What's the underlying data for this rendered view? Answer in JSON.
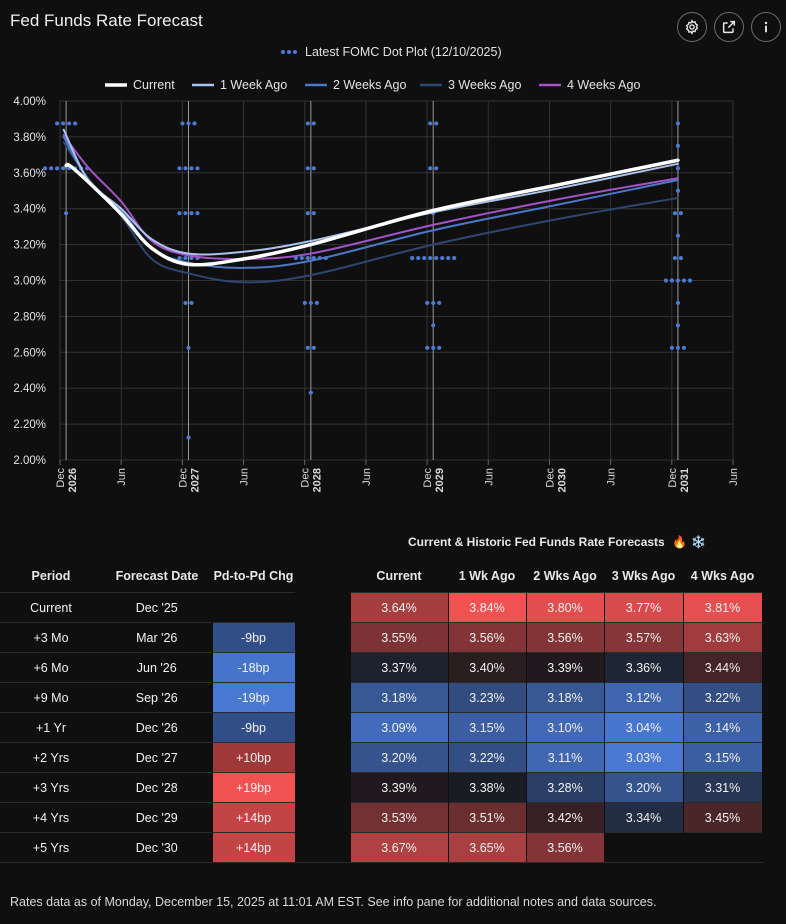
{
  "app": {
    "title": "Fed Funds Rate Forecast",
    "icons": [
      "gear-icon",
      "external-link-icon",
      "info-icon"
    ]
  },
  "chart_data": {
    "type": "line",
    "title": "Latest FOMC Dot Plot (12/10/2025)",
    "ylim": [
      0.02,
      0.04
    ],
    "y_ticks": [
      {
        "v": 0.02,
        "label": "2.00%"
      },
      {
        "v": 0.022,
        "label": "2.20%"
      },
      {
        "v": 0.024,
        "label": "2.40%"
      },
      {
        "v": 0.026,
        "label": "2.60%"
      },
      {
        "v": 0.028,
        "label": "2.80%"
      },
      {
        "v": 0.03,
        "label": "3.00%"
      },
      {
        "v": 0.032,
        "label": "3.20%"
      },
      {
        "v": 0.034,
        "label": "3.40%"
      },
      {
        "v": 0.036,
        "label": "3.60%"
      },
      {
        "v": 0.038,
        "label": "3.80%"
      },
      {
        "v": 0.04,
        "label": "4.00%"
      }
    ],
    "xlim": [
      2025.92,
      2031.42
    ],
    "x_ticks": [
      {
        "v": 2025.92,
        "label": [
          "Dec",
          "2026"
        ],
        "year": true
      },
      {
        "v": 2026.42,
        "label": [
          "Jun"
        ]
      },
      {
        "v": 2026.92,
        "label": [
          "Dec",
          "2027"
        ],
        "year": true
      },
      {
        "v": 2027.42,
        "label": [
          "Jun"
        ]
      },
      {
        "v": 2027.92,
        "label": [
          "Dec",
          "2028"
        ],
        "year": true
      },
      {
        "v": 2028.42,
        "label": [
          "Jun"
        ]
      },
      {
        "v": 2028.92,
        "label": [
          "Dec",
          "2029"
        ],
        "year": true
      },
      {
        "v": 2029.42,
        "label": [
          "Jun"
        ]
      },
      {
        "v": 2029.92,
        "label": [
          "Dec",
          "2030"
        ],
        "year": true
      },
      {
        "v": 2030.42,
        "label": [
          "Jun"
        ]
      },
      {
        "v": 2030.92,
        "label": [
          "Dec",
          "2031"
        ],
        "year": true
      },
      {
        "v": 2031.42,
        "label": [
          "Jun"
        ]
      }
    ],
    "fomc_lines": [
      2025.97,
      2026.97,
      2027.97,
      2028.97,
      2030.97
    ],
    "dots_legend": "Latest FOMC Dot Plot (12/10/2025)",
    "dot_plot": [
      {
        "x": 2025.97,
        "values": [
          {
            "v": 0.03875,
            "n": 4
          },
          {
            "v": 0.03625,
            "n": 8
          },
          {
            "v": 0.03375,
            "n": 1
          }
        ]
      },
      {
        "x": 2026.97,
        "values": [
          {
            "v": 0.03875,
            "n": 3
          },
          {
            "v": 0.03625,
            "n": 4
          },
          {
            "v": 0.03375,
            "n": 4
          },
          {
            "v": 0.03125,
            "n": 4
          },
          {
            "v": 0.02875,
            "n": 2
          },
          {
            "v": 0.02625,
            "n": 1
          },
          {
            "v": 0.02125,
            "n": 1
          }
        ]
      },
      {
        "x": 2027.97,
        "values": [
          {
            "v": 0.03875,
            "n": 2
          },
          {
            "v": 0.03625,
            "n": 2
          },
          {
            "v": 0.03375,
            "n": 2
          },
          {
            "v": 0.03125,
            "n": 6
          },
          {
            "v": 0.02875,
            "n": 3
          },
          {
            "v": 0.02625,
            "n": 2
          },
          {
            "v": 0.02375,
            "n": 1
          }
        ]
      },
      {
        "x": 2028.97,
        "values": [
          {
            "v": 0.03875,
            "n": 2
          },
          {
            "v": 0.03625,
            "n": 2
          },
          {
            "v": 0.03375,
            "n": 1
          },
          {
            "v": 0.03125,
            "n": 8
          },
          {
            "v": 0.02875,
            "n": 3
          },
          {
            "v": 0.0275,
            "n": 1
          },
          {
            "v": 0.02625,
            "n": 3
          }
        ]
      },
      {
        "x": 2030.97,
        "values": [
          {
            "v": 0.03875,
            "n": 1
          },
          {
            "v": 0.0375,
            "n": 1
          },
          {
            "v": 0.03625,
            "n": 1
          },
          {
            "v": 0.035,
            "n": 1
          },
          {
            "v": 0.03375,
            "n": 2
          },
          {
            "v": 0.0325,
            "n": 1
          },
          {
            "v": 0.03125,
            "n": 2
          },
          {
            "v": 0.03,
            "n": 5
          },
          {
            "v": 0.02875,
            "n": 1
          },
          {
            "v": 0.0275,
            "n": 1
          },
          {
            "v": 0.02625,
            "n": 3
          }
        ]
      }
    ],
    "series": [
      {
        "name": "Current",
        "color": "#ffffff",
        "width": 3.5,
        "points": [
          [
            2025.97,
            0.0364
          ],
          [
            2026.0,
            0.0364
          ],
          [
            2026.15,
            0.0355
          ],
          [
            2026.42,
            0.0337
          ],
          [
            2026.67,
            0.0318
          ],
          [
            2026.97,
            0.0309
          ],
          [
            2027.42,
            0.0312
          ],
          [
            2027.97,
            0.032
          ],
          [
            2028.97,
            0.0339
          ],
          [
            2029.97,
            0.0353
          ],
          [
            2030.97,
            0.0367
          ]
        ]
      },
      {
        "name": "1 Week Ago",
        "color": "#a9c4ec",
        "width": 2,
        "points": [
          [
            2025.95,
            0.0384
          ],
          [
            2026.15,
            0.0356
          ],
          [
            2026.42,
            0.034
          ],
          [
            2026.67,
            0.0323
          ],
          [
            2026.97,
            0.0315
          ],
          [
            2027.42,
            0.0316
          ],
          [
            2027.97,
            0.0322
          ],
          [
            2028.97,
            0.0338
          ],
          [
            2029.97,
            0.0351
          ],
          [
            2030.97,
            0.0365
          ]
        ]
      },
      {
        "name": "2 Weeks Ago",
        "color": "#4a78c8",
        "width": 2,
        "points": [
          [
            2025.95,
            0.038
          ],
          [
            2026.15,
            0.0356
          ],
          [
            2026.42,
            0.0339
          ],
          [
            2026.67,
            0.0318
          ],
          [
            2026.97,
            0.031
          ],
          [
            2027.42,
            0.0307
          ],
          [
            2027.97,
            0.0311
          ],
          [
            2028.97,
            0.0328
          ],
          [
            2029.97,
            0.0342
          ],
          [
            2030.97,
            0.0356
          ]
        ]
      },
      {
        "name": "3 Weeks Ago",
        "color": "#2e4670",
        "width": 2,
        "points": [
          [
            2025.95,
            0.0377
          ],
          [
            2026.15,
            0.0357
          ],
          [
            2026.42,
            0.0336
          ],
          [
            2026.67,
            0.0312
          ],
          [
            2026.97,
            0.0304
          ],
          [
            2027.42,
            0.0299
          ],
          [
            2027.97,
            0.0303
          ],
          [
            2028.97,
            0.032
          ],
          [
            2029.97,
            0.0334
          ],
          [
            2030.97,
            0.0346
          ]
        ]
      },
      {
        "name": "4 Weeks Ago",
        "color": "#a352c8",
        "width": 2,
        "points": [
          [
            2025.95,
            0.0381
          ],
          [
            2026.15,
            0.0363
          ],
          [
            2026.42,
            0.0344
          ],
          [
            2026.67,
            0.0322
          ],
          [
            2026.97,
            0.0314
          ],
          [
            2027.42,
            0.0312
          ],
          [
            2027.97,
            0.0315
          ],
          [
            2028.97,
            0.0331
          ],
          [
            2029.97,
            0.0345
          ],
          [
            2030.97,
            0.0357
          ]
        ]
      }
    ]
  },
  "table": {
    "title": "Current & Historic Fed Funds Rate Forecasts",
    "title_emoji": [
      "🔥",
      "❄️"
    ],
    "headers": [
      "Period",
      "Forecast Date",
      "Pd-to-Pd Chg",
      "Current",
      "1 Wk Ago",
      "2 Wks Ago",
      "3 Wks Ago",
      "4 Wks Ago"
    ],
    "rows": [
      {
        "period": "Current",
        "date": "Dec '25",
        "chg": "",
        "vals": [
          "3.64%",
          "3.84%",
          "3.80%",
          "3.77%",
          "3.81%"
        ]
      },
      {
        "period": "+3 Mo",
        "date": "Mar '26",
        "chg": "-9bp",
        "vals": [
          "3.55%",
          "3.56%",
          "3.56%",
          "3.57%",
          "3.63%"
        ]
      },
      {
        "period": "+6 Mo",
        "date": "Jun '26",
        "chg": "-18bp",
        "vals": [
          "3.37%",
          "3.40%",
          "3.39%",
          "3.36%",
          "3.44%"
        ]
      },
      {
        "period": "+9 Mo",
        "date": "Sep '26",
        "chg": "-19bp",
        "vals": [
          "3.18%",
          "3.23%",
          "3.18%",
          "3.12%",
          "3.22%"
        ]
      },
      {
        "period": "+1 Yr",
        "date": "Dec '26",
        "chg": "-9bp",
        "vals": [
          "3.09%",
          "3.15%",
          "3.10%",
          "3.04%",
          "3.14%"
        ]
      },
      {
        "period": "+2 Yrs",
        "date": "Dec '27",
        "chg": "+10bp",
        "vals": [
          "3.20%",
          "3.22%",
          "3.11%",
          "3.03%",
          "3.15%"
        ]
      },
      {
        "period": "+3 Yrs",
        "date": "Dec '28",
        "chg": "+19bp",
        "vals": [
          "3.39%",
          "3.38%",
          "3.28%",
          "3.20%",
          "3.31%"
        ]
      },
      {
        "period": "+4 Yrs",
        "date": "Dec '29",
        "chg": "+14bp",
        "vals": [
          "3.53%",
          "3.51%",
          "3.42%",
          "3.34%",
          "3.45%"
        ]
      },
      {
        "period": "+5 Yrs",
        "date": "Dec '30",
        "chg": "+14bp",
        "vals": [
          "3.67%",
          "3.65%",
          "3.56%",
          "",
          ""
        ]
      }
    ]
  },
  "footer": {
    "text": "Rates data as of Monday, December 15, 2025 at 11:01 AM EST.  See info pane for additional notes and data sources."
  }
}
